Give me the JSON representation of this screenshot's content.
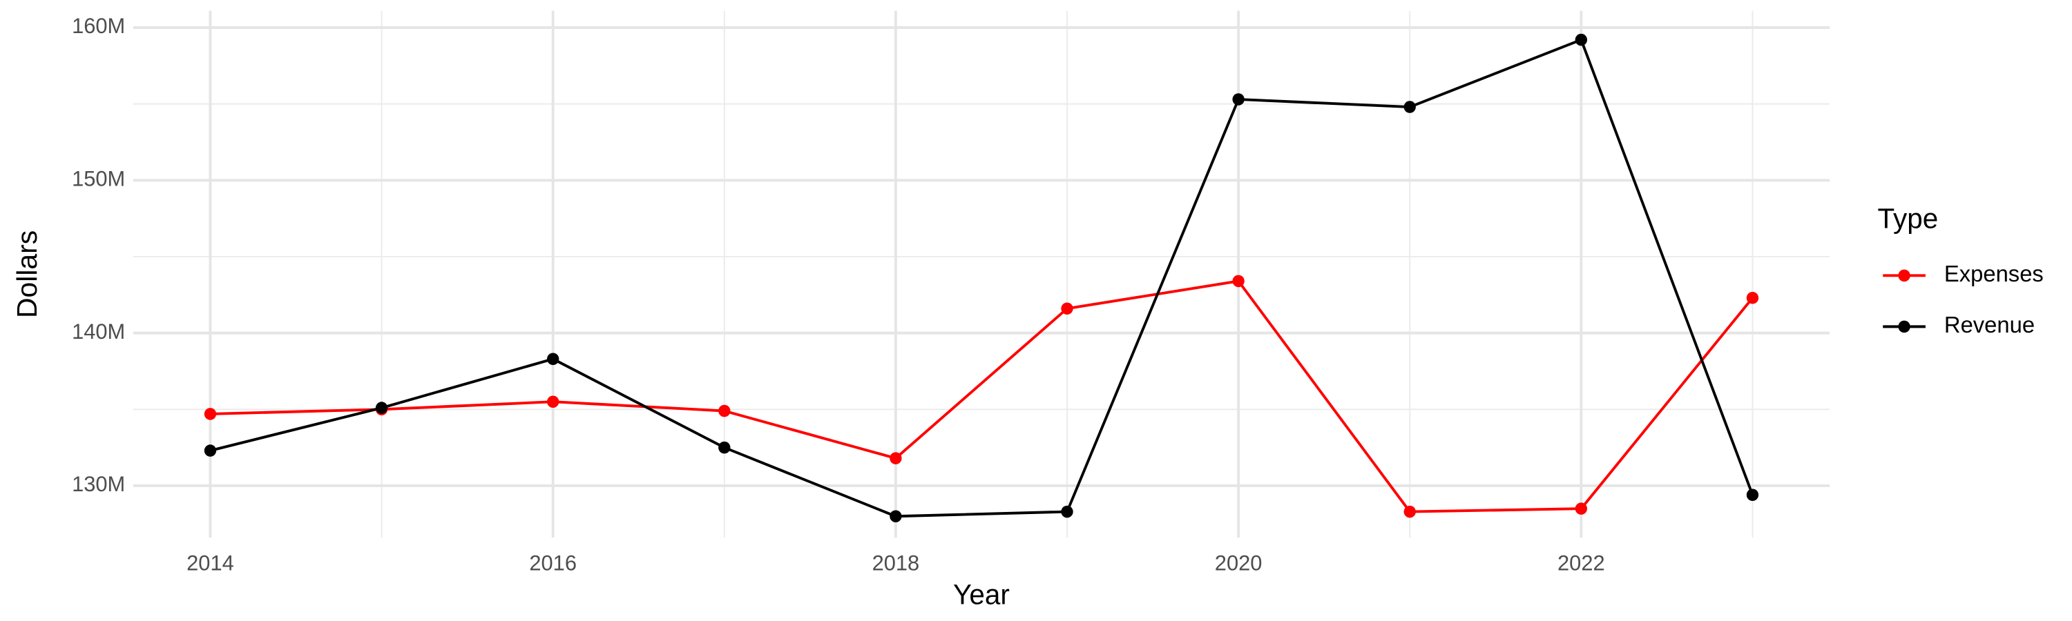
{
  "chart_data": {
    "type": "line",
    "x_label": "Year",
    "y_label": "Dollars",
    "legend_title": "Type",
    "legend": "right",
    "grid": true,
    "x": [
      2014,
      2015,
      2016,
      2017,
      2018,
      2019,
      2020,
      2021,
      2022,
      2023
    ],
    "series": [
      {
        "name": "Expenses",
        "color": "#ff0000",
        "values": [
          134700000,
          135000000,
          135500000,
          134900000,
          131800000,
          141600000,
          143400000,
          128300000,
          128500000,
          142300000
        ]
      },
      {
        "name": "Revenue",
        "color": "#000000",
        "values": [
          132300000,
          135100000,
          138300000,
          132500000,
          128000000,
          128300000,
          155300000,
          154800000,
          159200000,
          129400000
        ]
      }
    ],
    "xlim": [
      2013.55,
      2023.45
    ],
    "xticks": [
      2014,
      2016,
      2018,
      2020,
      2022
    ],
    "ylim": [
      126600000,
      161100000
    ],
    "yticks": [
      {
        "value": 130000000,
        "label": "130M"
      },
      {
        "value": 140000000,
        "label": "140M"
      },
      {
        "value": 150000000,
        "label": "150M"
      },
      {
        "value": 160000000,
        "label": "160M"
      }
    ]
  }
}
